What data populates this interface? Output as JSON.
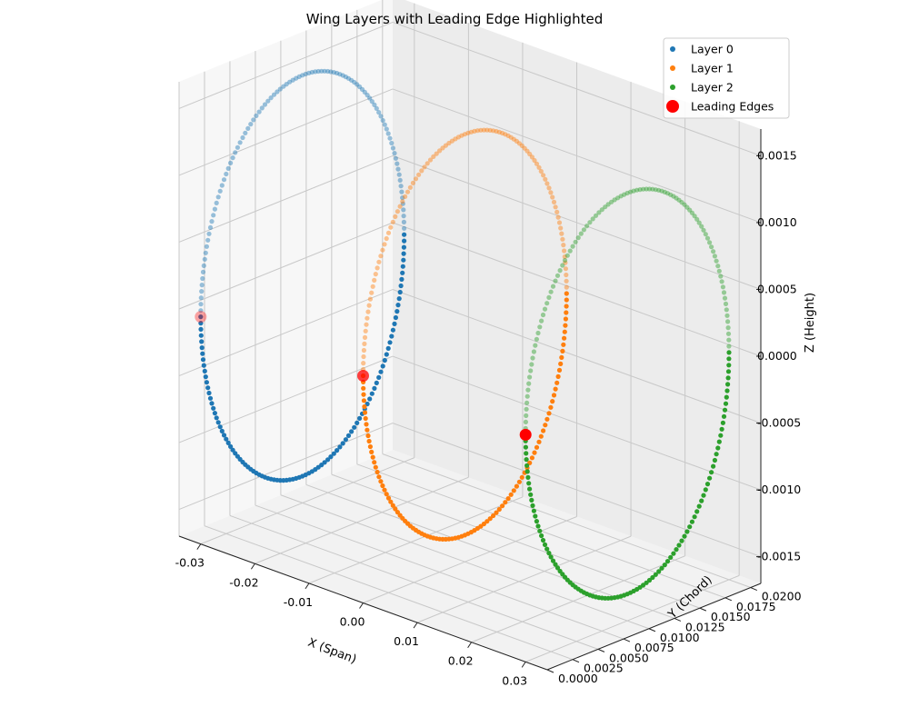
{
  "chart_data": {
    "type": "scatter",
    "projection": "3d",
    "title": "Wing Layers with Leading Edge Highlighted",
    "xlabel": "X (Span)",
    "ylabel": "Y (Chord)",
    "zlabel": "Z (Height)",
    "xlim": [
      -0.034,
      0.034
    ],
    "ylim": [
      0.0,
      0.021
    ],
    "zlim": [
      -0.0017,
      0.0017
    ],
    "xticks": [
      "-0.03",
      "-0.02",
      "-0.01",
      "0.00",
      "0.01",
      "0.02",
      "0.03"
    ],
    "yticks": [
      "0.0000",
      "0.0025",
      "0.0050",
      "0.0075",
      "0.0100",
      "0.0125",
      "0.0150",
      "0.0175",
      "0.0200"
    ],
    "zticks": [
      "-0.0015",
      "-0.0010",
      "-0.0005",
      "0.0000",
      "0.0005",
      "0.0010",
      "0.0015"
    ],
    "grid": true,
    "legend": "top-right",
    "series": [
      {
        "name": "Layer 0",
        "color": "#1f77b4",
        "chord": 0.02,
        "amplitude": 0.0015,
        "y_start": 0.0,
        "x_offset": -0.03
      },
      {
        "name": "Layer 1",
        "color": "#ff7f0e",
        "chord": 0.02,
        "amplitude": 0.0015,
        "y_start": 0.0,
        "x_offset": 0.0
      },
      {
        "name": "Layer 2",
        "color": "#2ca02c",
        "chord": 0.02,
        "amplitude": 0.0015,
        "y_start": 0.0,
        "x_offset": 0.03
      }
    ],
    "leading_edges": {
      "name": "Leading Edges",
      "color": "#ff0000",
      "points": [
        [
          -0.03,
          0.0,
          0.0
        ],
        [
          0.0,
          0.0,
          0.0
        ],
        [
          0.03,
          0.0,
          0.0
        ]
      ]
    }
  }
}
